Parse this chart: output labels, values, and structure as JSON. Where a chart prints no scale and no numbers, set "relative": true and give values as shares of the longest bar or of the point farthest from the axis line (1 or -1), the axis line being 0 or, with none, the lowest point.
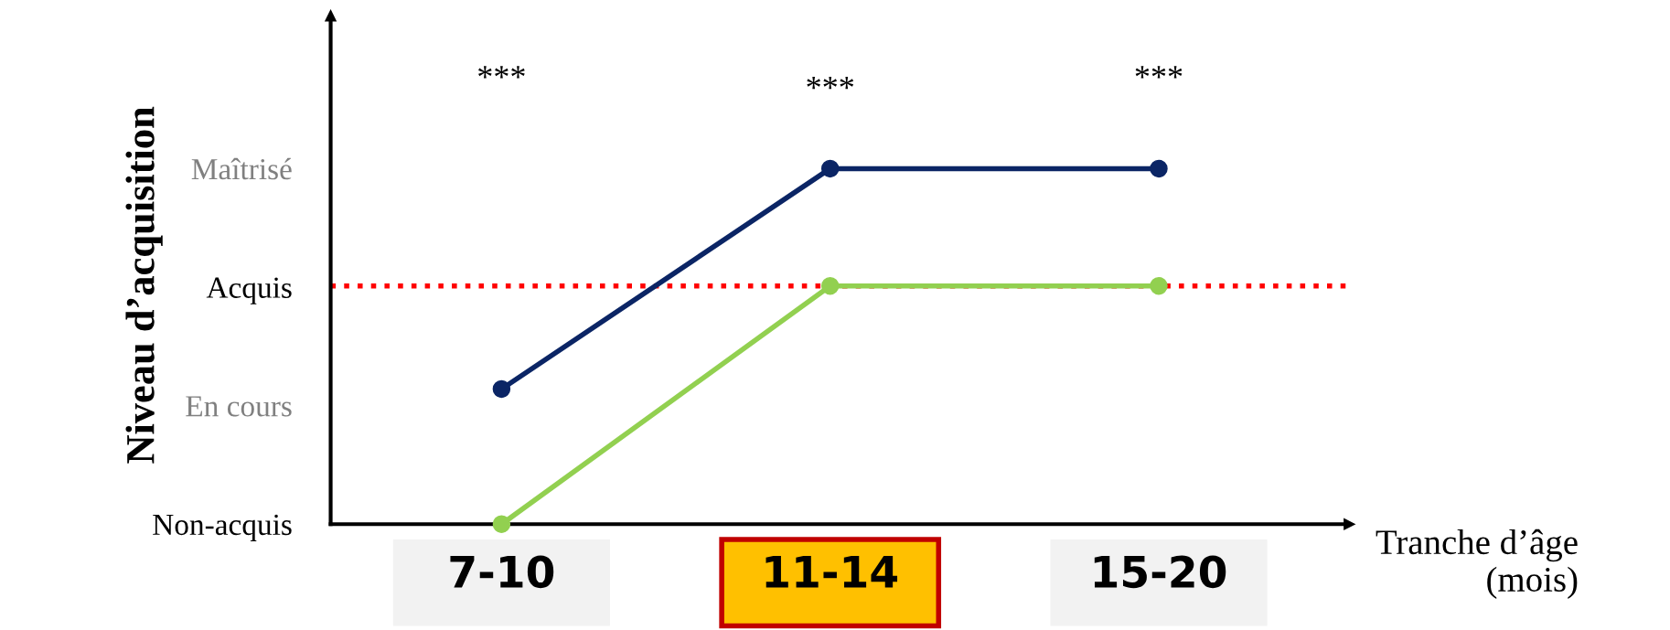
{
  "chart_data": {
    "type": "line",
    "xlabel": "Tranche d’âge\n(mois)",
    "ylabel": "Niveau d’acquisition",
    "categories": [
      "7-10",
      "11-14",
      "15-20"
    ],
    "y_categories": [
      "Maîtrisé",
      "Acquis",
      "En cours",
      "Non-acquis"
    ],
    "relative": true,
    "series": [
      {
        "color": "#0b2565",
        "values": [
          0.38,
          1,
          1
        ]
      },
      {
        "color": "#92d050",
        "values": [
          0,
          0.67,
          0.67
        ]
      }
    ],
    "ref_lines": [
      {
        "axis": "y",
        "value": 0.67,
        "color": "#ff0000",
        "line_style": "dotted"
      }
    ],
    "annotations": [
      "***",
      "***",
      "***"
    ],
    "marker": "circle",
    "line_style": "solid",
    "grid": false,
    "legend": false
  }
}
